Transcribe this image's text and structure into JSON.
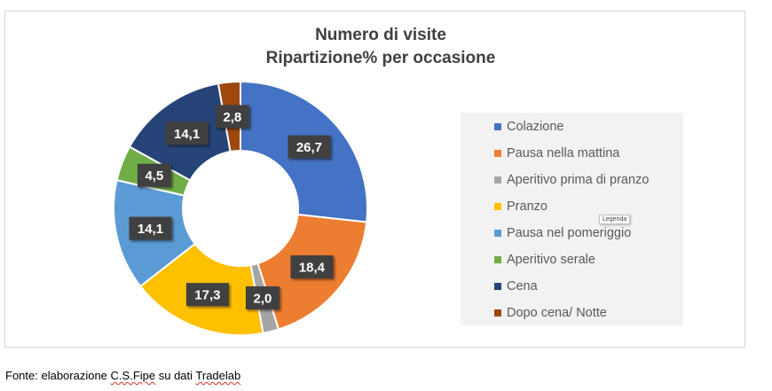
{
  "chart_data": {
    "type": "donut",
    "title": "Numero di visite",
    "subtitle": "Ripartizione% per occasione",
    "categories": [
      "Colazione",
      "Pausa nella mattina",
      "Aperitivo prima di pranzo",
      "Pranzo",
      "Pausa nel pomeriggio",
      "Aperitivo serale",
      "Cena",
      "Dopo cena/ Notte"
    ],
    "values": [
      26.7,
      18.4,
      2.0,
      17.3,
      14.1,
      4.5,
      14.1,
      2.8
    ],
    "labels": [
      "26,7",
      "18,4",
      "2,0",
      "17,3",
      "14,1",
      "4,5",
      "14,1",
      "2,8"
    ],
    "colors": [
      "#4472c4",
      "#ed7d31",
      "#a5a5a5",
      "#ffc000",
      "#5b9bd5",
      "#70ad47",
      "#264478",
      "#9e480e"
    ],
    "legend_position": "right",
    "legend_tooltip": "Legenda"
  },
  "footer": {
    "prefix": "Fonte: elaborazione ",
    "org": "C.S.Fipe",
    "middle": " su dati ",
    "source": "Tradelab"
  }
}
